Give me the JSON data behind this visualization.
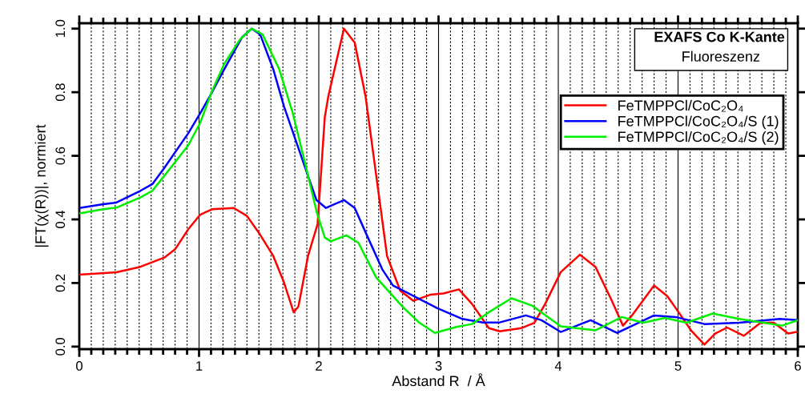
{
  "chart_data": {
    "type": "line",
    "title": "EXAFS Co K-Kante",
    "subtitle": "Fluoreszenz",
    "xlabel": "Abstand R  / Å",
    "ylabel": "|FT(χ(R))|, normiert",
    "xlim": [
      0,
      6
    ],
    "ylim": [
      -0.008,
      1.017
    ],
    "xticks": [
      0,
      {
        "value": 0.1,
        "label": null
      },
      {
        "value": 0.2,
        "label": null
      },
      {
        "value": 0.3,
        "label": null
      },
      {
        "value": 0.4,
        "label": null
      },
      {
        "value": 0.5,
        "label": null
      },
      {
        "value": 0.6,
        "label": null
      },
      {
        "value": 0.7,
        "label": null
      },
      {
        "value": 0.8,
        "label": null
      },
      {
        "value": 0.9,
        "label": null
      },
      1,
      {
        "value": 1.1,
        "label": null
      },
      {
        "value": 1.2,
        "label": null
      },
      {
        "value": 1.3,
        "label": null
      },
      {
        "value": 1.4,
        "label": null
      },
      {
        "value": 1.5,
        "label": null
      },
      {
        "value": 1.6,
        "label": null
      },
      {
        "value": 1.7,
        "label": null
      },
      {
        "value": 1.8,
        "label": null
      },
      {
        "value": 1.9,
        "label": null
      },
      2,
      {
        "value": 2.1,
        "label": null
      },
      {
        "value": 2.2,
        "label": null
      },
      {
        "value": 2.3,
        "label": null
      },
      {
        "value": 2.4,
        "label": null
      },
      {
        "value": 2.5,
        "label": null
      },
      {
        "value": 2.6,
        "label": null
      },
      {
        "value": 2.7,
        "label": null
      },
      {
        "value": 2.8,
        "label": null
      },
      {
        "value": 2.9,
        "label": null
      },
      3,
      {
        "value": 3.1,
        "label": null
      },
      {
        "value": 3.2,
        "label": null
      },
      {
        "value": 3.3,
        "label": null
      },
      {
        "value": 3.4,
        "label": null
      },
      {
        "value": 3.5,
        "label": null
      },
      {
        "value": 3.6,
        "label": null
      },
      {
        "value": 3.7,
        "label": null
      },
      {
        "value": 3.8,
        "label": null
      },
      {
        "value": 3.9,
        "label": null
      },
      4,
      {
        "value": 4.1,
        "label": null
      },
      {
        "value": 4.2,
        "label": null
      },
      {
        "value": 4.3,
        "label": null
      },
      {
        "value": 4.4,
        "label": null
      },
      {
        "value": 4.5,
        "label": null
      },
      {
        "value": 4.6,
        "label": null
      },
      {
        "value": 4.7,
        "label": null
      },
      {
        "value": 4.8,
        "label": null
      },
      {
        "value": 4.9,
        "label": null
      },
      5,
      {
        "value": 5.1,
        "label": null
      },
      {
        "value": 5.2,
        "label": null
      },
      {
        "value": 5.3,
        "label": null
      },
      {
        "value": 5.4,
        "label": null
      },
      {
        "value": 5.5,
        "label": null
      },
      {
        "value": 5.6,
        "label": null
      },
      {
        "value": 5.7,
        "label": null
      },
      {
        "value": 5.8,
        "label": null
      },
      {
        "value": 5.9,
        "label": null
      },
      6
    ],
    "yticks": [
      {
        "value": 0,
        "label": "0.0"
      },
      0.2,
      0.4,
      0.6,
      0.8,
      {
        "value": 1,
        "label": "1.0"
      }
    ],
    "grid": "x",
    "legend": "top right",
    "marker": "none",
    "line_style": "solid",
    "series": [
      {
        "name": "FeTMPPCl/CoC₂O₄",
        "color": "#ff0000",
        "x": [
          0.0,
          0.31,
          0.51,
          0.71,
          0.8,
          0.91,
          1.01,
          1.11,
          1.29,
          1.4,
          1.51,
          1.62,
          1.71,
          1.79,
          1.83,
          1.91,
          1.99,
          2.05,
          2.08,
          2.21,
          2.3,
          2.39,
          2.48,
          2.57,
          2.68,
          2.79,
          2.93,
          3.04,
          3.17,
          3.28,
          3.42,
          3.51,
          3.69,
          3.8,
          3.89,
          4.02,
          4.18,
          4.31,
          4.44,
          4.54,
          4.62,
          4.8,
          4.91,
          5.02,
          5.11,
          5.22,
          5.31,
          5.41,
          5.55,
          5.69,
          5.8,
          5.92,
          6.0
        ],
        "values": [
          0.226,
          0.234,
          0.251,
          0.28,
          0.306,
          0.369,
          0.415,
          0.432,
          0.436,
          0.411,
          0.352,
          0.285,
          0.201,
          0.108,
          0.126,
          0.285,
          0.385,
          0.721,
          0.788,
          1.0,
          0.956,
          0.788,
          0.537,
          0.285,
          0.176,
          0.144,
          0.163,
          0.167,
          0.18,
          0.134,
          0.058,
          0.048,
          0.058,
          0.075,
          0.134,
          0.234,
          0.289,
          0.251,
          0.15,
          0.066,
          0.1,
          0.192,
          0.159,
          0.1,
          0.05,
          0.006,
          0.041,
          0.06,
          0.034,
          0.075,
          0.075,
          0.041,
          0.047
        ]
      },
      {
        "name": "FeTMPPCl/CoC₂O₄/S (1)",
        "color": "#0000ff",
        "x": [
          0.0,
          0.2,
          0.31,
          0.51,
          0.61,
          0.71,
          0.91,
          1.01,
          1.11,
          1.21,
          1.36,
          1.44,
          1.51,
          1.62,
          1.71,
          1.81,
          1.91,
          1.98,
          2.06,
          2.21,
          2.3,
          2.41,
          2.53,
          2.62,
          2.73,
          2.84,
          2.99,
          3.2,
          3.37,
          3.51,
          3.73,
          3.86,
          4.02,
          4.27,
          4.49,
          4.62,
          4.8,
          4.98,
          5.22,
          5.51,
          5.85,
          6.0
        ],
        "values": [
          0.436,
          0.448,
          0.453,
          0.49,
          0.511,
          0.562,
          0.671,
          0.734,
          0.801,
          0.872,
          0.973,
          1.0,
          0.982,
          0.872,
          0.755,
          0.646,
          0.537,
          0.461,
          0.436,
          0.461,
          0.436,
          0.343,
          0.243,
          0.192,
          0.171,
          0.15,
          0.121,
          0.087,
          0.076,
          0.076,
          0.098,
          0.083,
          0.046,
          0.083,
          0.043,
          0.066,
          0.098,
          0.093,
          0.071,
          0.075,
          0.087,
          0.083
        ]
      },
      {
        "name": "FeTMPPCl/CoC₂O₄/S (2)",
        "color": "#00ee00",
        "x": [
          0.0,
          0.2,
          0.31,
          0.51,
          0.61,
          0.71,
          0.91,
          1.01,
          1.11,
          1.21,
          1.34,
          1.44,
          1.53,
          1.67,
          1.78,
          1.89,
          1.98,
          2.05,
          2.1,
          2.23,
          2.33,
          2.48,
          2.7,
          2.84,
          2.97,
          3.15,
          3.28,
          3.42,
          3.61,
          3.78,
          4.02,
          4.31,
          4.53,
          4.71,
          4.89,
          5.07,
          5.29,
          5.51,
          5.87,
          6.0
        ],
        "values": [
          0.419,
          0.432,
          0.437,
          0.469,
          0.49,
          0.537,
          0.633,
          0.704,
          0.805,
          0.889,
          0.965,
          1.0,
          0.982,
          0.872,
          0.738,
          0.57,
          0.427,
          0.343,
          0.331,
          0.35,
          0.327,
          0.217,
          0.125,
          0.075,
          0.043,
          0.062,
          0.071,
          0.108,
          0.152,
          0.129,
          0.064,
          0.051,
          0.093,
          0.075,
          0.09,
          0.075,
          0.104,
          0.087,
          0.066,
          0.083
        ]
      }
    ]
  }
}
